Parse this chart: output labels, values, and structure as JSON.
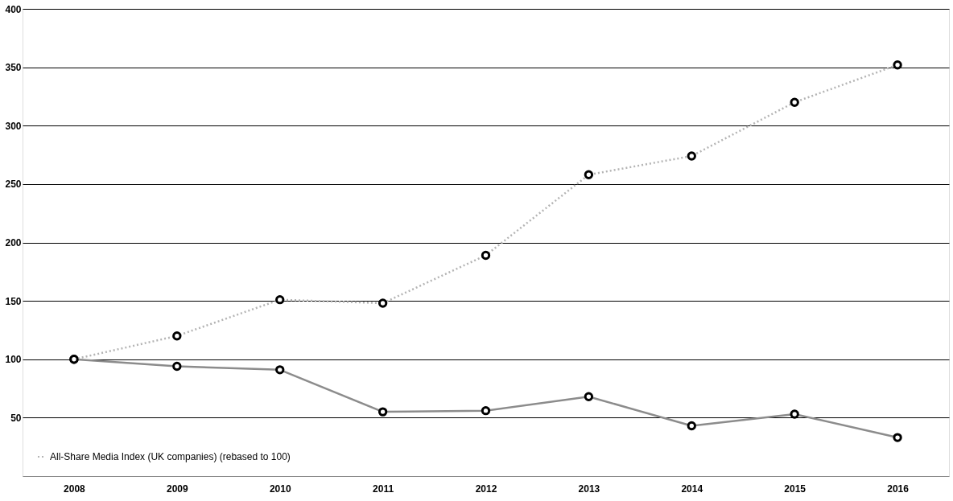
{
  "chart_data": {
    "type": "line",
    "categories": [
      "2008",
      "2009",
      "2010",
      "2011",
      "2012",
      "2013",
      "2014",
      "2015",
      "2016"
    ],
    "series": [
      {
        "color": "#8c8c8c",
        "line_style": "solid",
        "values": [
          100,
          94,
          91,
          55,
          56,
          68,
          43,
          53,
          33
        ]
      },
      {
        "name": "All-Share Media Index (UK companies) (rebased to 100)",
        "color": "#b4b4b4",
        "line_style": "dotted",
        "values": [
          100,
          120,
          151,
          148,
          189,
          258,
          274,
          320,
          352
        ]
      }
    ],
    "ylim": [
      0,
      400
    ],
    "yticks": [
      50,
      100,
      150,
      200,
      250,
      300,
      350,
      400
    ],
    "grid": "y",
    "marker": "circle",
    "legend": "bottom left"
  }
}
